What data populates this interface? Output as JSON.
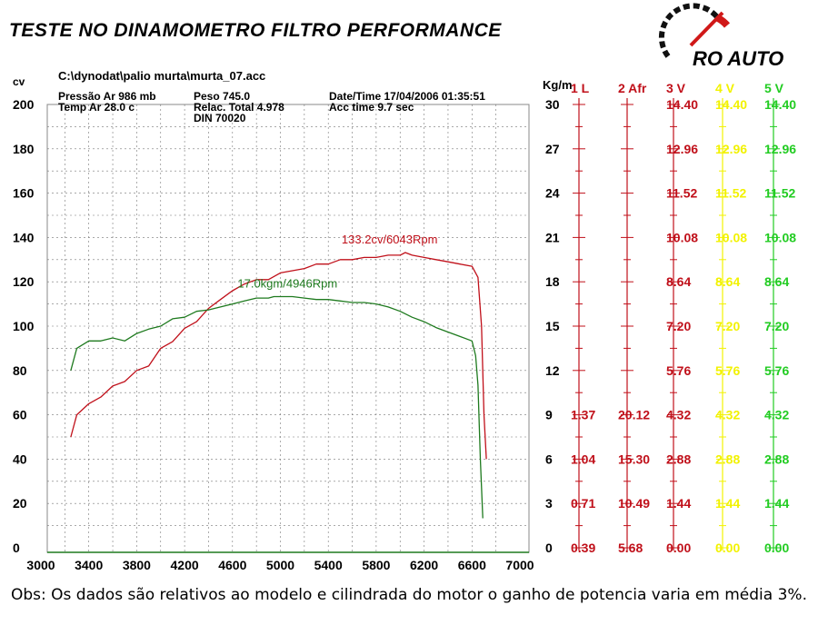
{
  "header": {
    "title": "TESTE NO DINAMOMETRO  FILTRO PERFORMANCE",
    "logo_text": "RO AUTO"
  },
  "info": {
    "file": "C:\\dynodat\\palio murta\\murta_07.acc",
    "pressao": "Pressão Ar   986 mb",
    "temp": "Temp Ar    28.0 c",
    "peso": "Peso      745.0",
    "relac": "Relac. Total 4.978",
    "din": "DIN 70020",
    "datetime": "Date/Time  17/04/2006 01:35:51",
    "acc": "Acc time   9.7 sec"
  },
  "chart_data": {
    "type": "line",
    "left_axis": {
      "label": "cv",
      "ticks": [
        "0",
        "20",
        "40",
        "60",
        "80",
        "100",
        "120",
        "140",
        "160",
        "180",
        "200"
      ],
      "range": [
        0,
        200
      ]
    },
    "torque_axis": {
      "label": "Kg/m",
      "ticks": [
        "0",
        "3",
        "6",
        "9",
        "12",
        "15",
        "18",
        "21",
        "24",
        "27",
        "30"
      ],
      "range": [
        0,
        30
      ]
    },
    "x_axis": {
      "ticks": [
        "3000",
        "3400",
        "3800",
        "4200",
        "4600",
        "5000",
        "5400",
        "5800",
        "6200",
        "6600",
        "7000"
      ],
      "range": [
        3000,
        7000
      ]
    },
    "grid": true,
    "series": [
      {
        "kind": "power",
        "color": "#c0101a",
        "x": [
          3250,
          3300,
          3400,
          3500,
          3600,
          3700,
          3800,
          3900,
          4000,
          4100,
          4200,
          4300,
          4400,
          4500,
          4600,
          4700,
          4800,
          4900,
          5000,
          5100,
          5200,
          5300,
          5400,
          5500,
          5600,
          5700,
          5800,
          5900,
          6000,
          6043,
          6100,
          6200,
          6300,
          6400,
          6500,
          6600,
          6650,
          6680,
          6700,
          6720
        ],
        "y": [
          50,
          60,
          65,
          68,
          73,
          75,
          80,
          82,
          90,
          93,
          99,
          102,
          108,
          112,
          116,
          119,
          121,
          121,
          124,
          125,
          126,
          128,
          128,
          130,
          130,
          131,
          131,
          132,
          132,
          133.2,
          132,
          131,
          130,
          129,
          128,
          127,
          122,
          100,
          60,
          40
        ]
      },
      {
        "kind": "torque",
        "color": "#1e7a1e",
        "x": [
          3250,
          3300,
          3400,
          3500,
          3600,
          3700,
          3800,
          3900,
          4000,
          4100,
          4200,
          4300,
          4400,
          4500,
          4600,
          4700,
          4800,
          4900,
          4946,
          5000,
          5100,
          5200,
          5300,
          5400,
          5500,
          5600,
          5700,
          5800,
          5900,
          6000,
          6100,
          6200,
          6300,
          6400,
          6500,
          6600,
          6630,
          6650,
          6670,
          6690
        ],
        "y": [
          12.0,
          13.5,
          14.0,
          14.0,
          14.2,
          14.0,
          14.5,
          14.8,
          15.0,
          15.5,
          15.6,
          16.0,
          16.1,
          16.3,
          16.5,
          16.7,
          16.9,
          16.9,
          17.0,
          17.0,
          17.0,
          16.9,
          16.8,
          16.8,
          16.7,
          16.6,
          16.6,
          16.5,
          16.3,
          16.0,
          15.6,
          15.3,
          14.9,
          14.6,
          14.3,
          14.0,
          13.0,
          11.0,
          6.0,
          2.0
        ]
      }
    ],
    "annotations": [
      {
        "text": "133.2cv/6043Rpm",
        "x": 6043,
        "y": 133.2,
        "color": "#c0101a"
      },
      {
        "text": "17.0kgm/4946Rpm",
        "x": 4946,
        "y": 17.0,
        "color": "#1e7a1e"
      }
    ],
    "channels": [
      {
        "title": "1 L",
        "color": "#c0101a",
        "values": [
          "1.37",
          "1.04",
          "0.71",
          "0.39"
        ]
      },
      {
        "title": "2 Afr",
        "color": "#c0101a",
        "values": [
          "20.12",
          "15.30",
          "10.49",
          "5.68"
        ]
      },
      {
        "title": "3 V",
        "color": "#c0101a",
        "values": [
          "14.40",
          "12.96",
          "11.52",
          "10.08",
          "8.64",
          "7.20",
          "5.76",
          "4.32",
          "2.88",
          "1.44",
          "0.00"
        ]
      },
      {
        "title": "4 V",
        "color": "#f2f200",
        "values": [
          "14.40",
          "12.96",
          "11.52",
          "10.08",
          "8.64",
          "7.20",
          "5.76",
          "4.32",
          "2.88",
          "1.44",
          "0.00"
        ]
      },
      {
        "title": "5 V",
        "color": "#22cc22",
        "values": [
          "14.40",
          "12.96",
          "11.52",
          "10.08",
          "8.64",
          "7.20",
          "5.76",
          "4.32",
          "2.88",
          "1.44",
          "0.00"
        ]
      }
    ]
  },
  "footer": {
    "obs": "Obs: Os dados são relativos ao modelo e cilindrada do motor o ganho de potencia varia em média 3%."
  }
}
